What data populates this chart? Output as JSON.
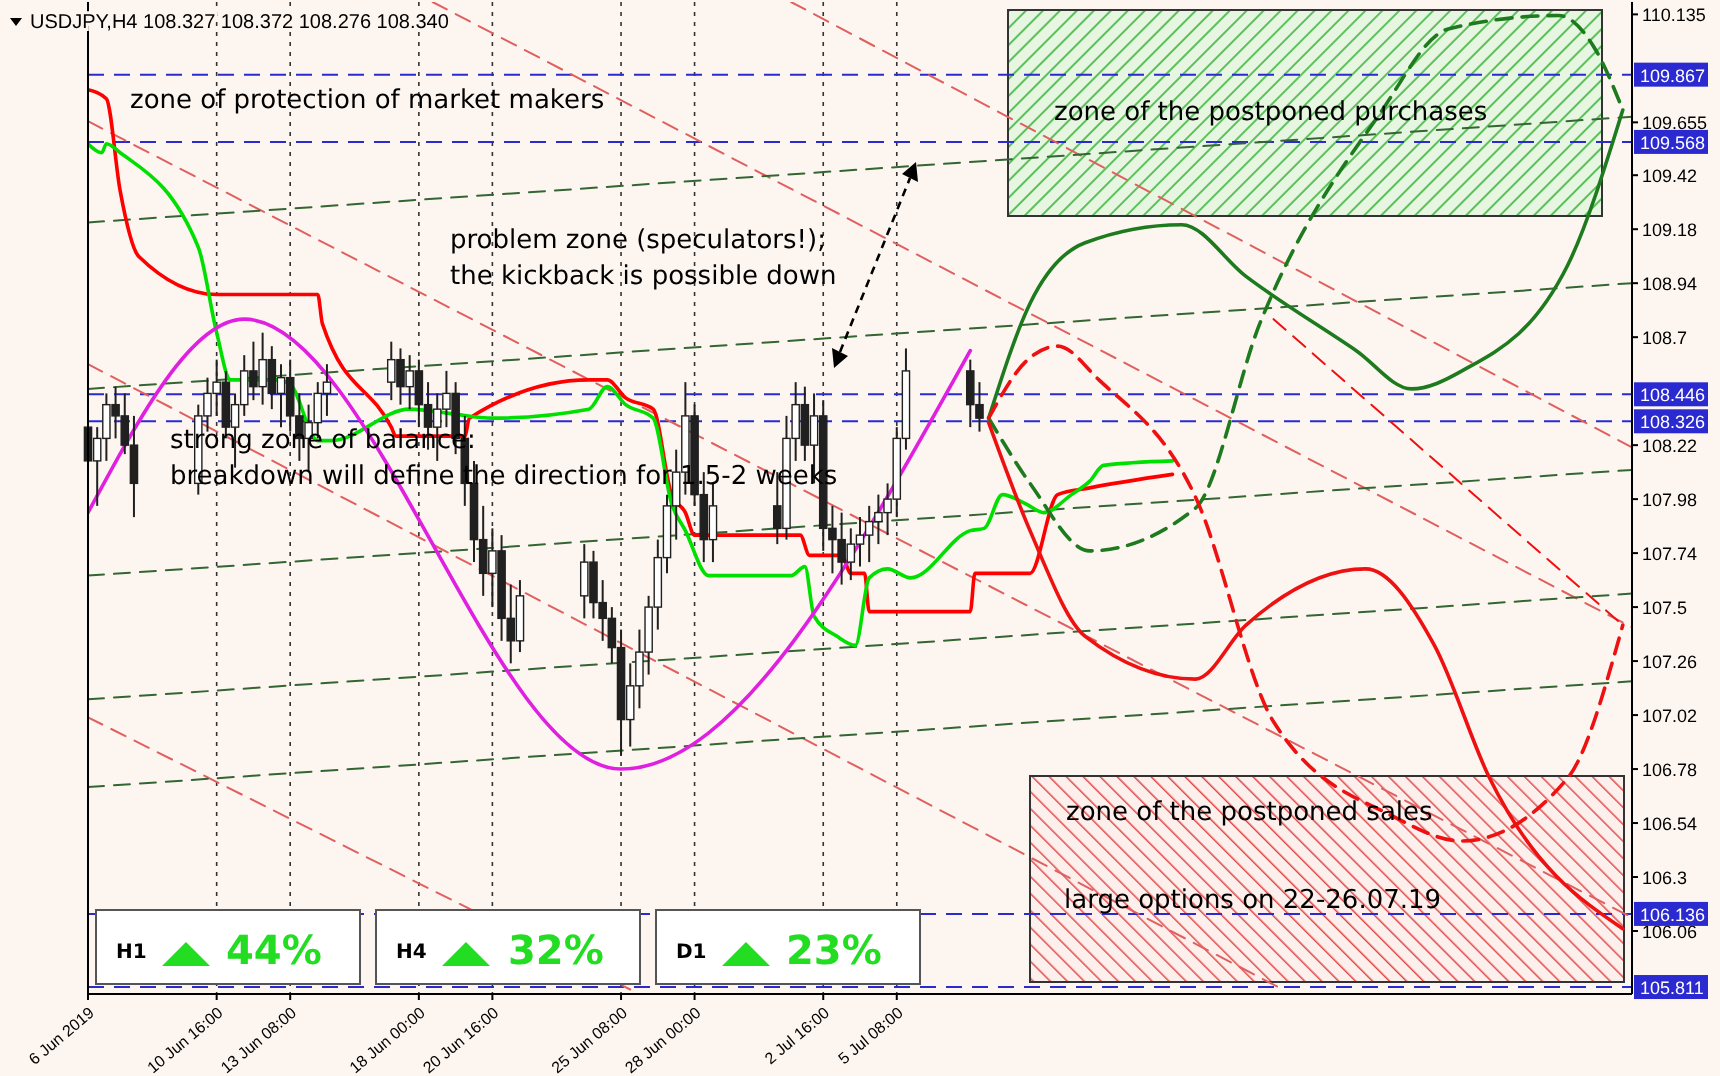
{
  "chart_data": {
    "type": "candlestick",
    "title": "USDJPY,H4 108.327 108.372 108.276 108.340",
    "x": [
      "2019-06-06T00:00",
      "2019-06-06T08:00",
      "2019-06-06T16:00",
      "2019-06-07T00:00",
      "2019-06-07T08:00",
      "2019-06-07T16:00",
      "2019-06-10T00:00",
      "2019-06-10T08:00",
      "2019-06-10T16:00",
      "2019-06-11T00:00",
      "2019-06-11T08:00",
      "2019-06-11T16:00",
      "2019-06-12T00:00",
      "2019-06-12T08:00",
      "2019-06-12T16:00",
      "2019-06-13T00:00",
      "2019-06-13T08:00",
      "2019-06-13T16:00",
      "2019-06-14T00:00",
      "2019-06-14T08:00",
      "2019-06-14T16:00",
      "2019-06-17T00:00",
      "2019-06-17T08:00",
      "2019-06-17T16:00",
      "2019-06-18T00:00",
      "2019-06-18T08:00",
      "2019-06-18T16:00",
      "2019-06-19T00:00",
      "2019-06-19T08:00",
      "2019-06-19T16:00",
      "2019-06-20T00:00",
      "2019-06-20T08:00",
      "2019-06-20T16:00",
      "2019-06-21T00:00",
      "2019-06-21T08:00",
      "2019-06-21T16:00",
      "2019-06-24T00:00",
      "2019-06-24T08:00",
      "2019-06-24T16:00",
      "2019-06-25T00:00",
      "2019-06-25T08:00",
      "2019-06-25T16:00",
      "2019-06-26T00:00",
      "2019-06-26T08:00",
      "2019-06-26T16:00",
      "2019-06-27T00:00",
      "2019-06-27T08:00",
      "2019-06-27T16:00",
      "2019-06-28T00:00",
      "2019-06-28T08:00",
      "2019-06-28T16:00",
      "2019-07-01T00:00",
      "2019-07-01T08:00",
      "2019-07-01T16:00",
      "2019-07-02T00:00",
      "2019-07-02T08:00",
      "2019-07-02T16:00",
      "2019-07-03T00:00",
      "2019-07-03T08:00",
      "2019-07-03T16:00",
      "2019-07-04T00:00",
      "2019-07-04T08:00",
      "2019-07-04T16:00",
      "2019-07-05T00:00",
      "2019-07-05T08:00",
      "2019-07-05T16:00",
      "2019-07-08T00:00",
      "2019-07-08T08:00"
    ],
    "ohlc": [
      [
        108.3,
        108.42,
        108.05,
        108.15
      ],
      [
        108.15,
        108.3,
        107.95,
        108.25
      ],
      [
        108.25,
        108.45,
        108.15,
        108.4
      ],
      [
        108.4,
        108.48,
        108.25,
        108.35
      ],
      [
        108.35,
        108.45,
        108.18,
        108.22
      ],
      [
        108.22,
        108.35,
        107.9,
        108.05
      ],
      [
        108.05,
        108.4,
        108.0,
        108.35
      ],
      [
        108.35,
        108.52,
        108.28,
        108.45
      ],
      [
        108.45,
        108.6,
        108.35,
        108.5
      ],
      [
        108.5,
        108.55,
        108.25,
        108.3
      ],
      [
        108.3,
        108.45,
        108.12,
        108.4
      ],
      [
        108.4,
        108.62,
        108.35,
        108.55
      ],
      [
        108.55,
        108.68,
        108.42,
        108.48
      ],
      [
        108.48,
        108.72,
        108.4,
        108.6
      ],
      [
        108.6,
        108.66,
        108.38,
        108.45
      ],
      [
        108.45,
        108.58,
        108.3,
        108.52
      ],
      [
        108.52,
        108.6,
        108.28,
        108.35
      ],
      [
        108.35,
        108.45,
        108.15,
        108.25
      ],
      [
        108.25,
        108.4,
        108.1,
        108.32
      ],
      [
        108.32,
        108.5,
        108.25,
        108.45
      ],
      [
        108.45,
        108.58,
        108.35,
        108.5
      ],
      [
        108.5,
        108.68,
        108.42,
        108.6
      ],
      [
        108.6,
        108.65,
        108.4,
        108.48
      ],
      [
        108.48,
        108.62,
        108.38,
        108.55
      ],
      [
        108.55,
        108.6,
        108.3,
        108.4
      ],
      [
        108.4,
        108.5,
        108.2,
        108.3
      ],
      [
        108.3,
        108.45,
        108.15,
        108.38
      ],
      [
        108.38,
        108.55,
        108.3,
        108.45
      ],
      [
        108.45,
        108.5,
        108.18,
        108.25
      ],
      [
        108.25,
        108.35,
        107.95,
        108.05
      ],
      [
        108.05,
        108.15,
        107.7,
        107.8
      ],
      [
        107.8,
        107.95,
        107.55,
        107.65
      ],
      [
        107.65,
        107.85,
        107.5,
        107.75
      ],
      [
        107.75,
        107.82,
        107.35,
        107.45
      ],
      [
        107.45,
        107.6,
        107.25,
        107.35
      ],
      [
        107.35,
        107.62,
        107.3,
        107.55
      ],
      [
        107.55,
        107.78,
        107.45,
        107.7
      ],
      [
        107.7,
        107.75,
        107.45,
        107.52
      ],
      [
        107.52,
        107.62,
        107.35,
        107.45
      ],
      [
        107.45,
        107.5,
        107.25,
        107.32
      ],
      [
        107.32,
        107.4,
        106.84,
        107.0
      ],
      [
        107.0,
        107.25,
        106.88,
        107.15
      ],
      [
        107.15,
        107.4,
        107.05,
        107.3
      ],
      [
        107.3,
        107.55,
        107.2,
        107.5
      ],
      [
        107.5,
        107.8,
        107.4,
        107.72
      ],
      [
        107.72,
        108.0,
        107.65,
        107.95
      ],
      [
        107.95,
        108.2,
        107.8,
        108.1
      ],
      [
        108.1,
        108.5,
        108.0,
        108.35
      ],
      [
        108.35,
        108.4,
        107.95,
        108.0
      ],
      [
        108.0,
        108.1,
        107.7,
        107.8
      ],
      [
        107.8,
        108.05,
        107.7,
        107.95
      ],
      [
        107.95,
        108.1,
        107.78,
        107.85
      ],
      [
        107.85,
        108.35,
        107.8,
        108.25
      ],
      [
        108.25,
        108.5,
        108.15,
        108.4
      ],
      [
        108.4,
        108.48,
        108.15,
        108.22
      ],
      [
        108.22,
        108.45,
        108.05,
        108.35
      ],
      [
        108.35,
        108.42,
        107.75,
        107.85
      ],
      [
        107.85,
        107.95,
        107.65,
        107.8
      ],
      [
        107.8,
        107.92,
        107.6,
        107.7
      ],
      [
        107.7,
        107.85,
        107.62,
        107.78
      ],
      [
        107.78,
        107.9,
        107.68,
        107.82
      ],
      [
        107.82,
        107.95,
        107.7,
        107.88
      ],
      [
        107.88,
        108.0,
        107.78,
        107.92
      ],
      [
        107.92,
        108.05,
        107.82,
        107.98
      ],
      [
        107.98,
        108.3,
        107.9,
        108.25
      ],
      [
        108.25,
        108.65,
        108.2,
        108.55
      ],
      [
        108.55,
        108.6,
        108.3,
        108.4
      ],
      [
        108.4,
        108.5,
        108.28,
        108.34
      ]
    ],
    "color": "#202020",
    "series": [
      {
        "type": "line",
        "color": "#e06060",
        "line_style": "dashed",
        "x": [
          "2019-07-01T12:00",
          "2019-08-01T00:00"
        ],
        "values": [
          110.19,
          108.21
        ]
      },
      {
        "type": "line",
        "color": "#e06060",
        "line_style": "dashed",
        "x": [
          "2019-06-18T12:00",
          "2019-08-01T00:00"
        ],
        "values": [
          110.19,
          107.41
        ]
      },
      {
        "type": "line",
        "color": "#e06060",
        "line_style": "dashed",
        "x": [
          "2019-06-06T00:00",
          "2019-08-01T00:00"
        ],
        "values": [
          109.66,
          106.12
        ]
      },
      {
        "type": "line",
        "color": "#e06060",
        "line_style": "dashed",
        "x": [
          "2019-06-06T00:00",
          "2019-07-19T08:00"
        ],
        "values": [
          108.58,
          105.8
        ]
      },
      {
        "type": "line",
        "color": "#e06060",
        "line_style": "dashed",
        "x": [
          "2019-06-06T00:00",
          "2019-06-25T16:00"
        ],
        "values": [
          107.01,
          105.8
        ]
      },
      {
        "type": "line",
        "color": "#336633",
        "line_style": "dashed",
        "x": [
          "2019-06-06T00:00",
          "2019-08-01T00:00"
        ],
        "values": [
          109.21,
          109.68
        ]
      },
      {
        "type": "line",
        "color": "#336633",
        "line_style": "dashed",
        "x": [
          "2019-06-06T00:00",
          "2019-08-01T00:00"
        ],
        "values": [
          108.47,
          108.94
        ]
      },
      {
        "type": "line",
        "color": "#336633",
        "line_style": "dashed",
        "x": [
          "2019-06-06T00:00",
          "2019-08-01T00:00"
        ],
        "values": [
          107.64,
          108.11
        ]
      },
      {
        "type": "line",
        "color": "#336633",
        "line_style": "dashed",
        "x": [
          "2019-06-06T00:00",
          "2019-08-01T00:00"
        ],
        "values": [
          107.09,
          107.56
        ]
      },
      {
        "type": "line",
        "color": "#336633",
        "line_style": "dashed",
        "x": [
          "2019-06-06T00:00",
          "2019-08-01T00:00"
        ],
        "values": [
          106.7,
          107.17
        ]
      },
      {
        "type": "line",
        "color": "#ff0000",
        "line_style": "solid",
        "x": [
          "2019-06-06T00:00",
          "2019-06-06T16:00",
          "2019-06-07T04:00",
          "2019-06-07T20:00",
          "2019-06-10T16:00",
          "2019-06-14T08:00",
          "2019-06-14T12:00",
          "2019-06-17T00:00",
          "2019-06-17T04:00",
          "2019-06-19T16:00",
          "2019-06-19T20:00",
          "2019-06-24T04:00",
          "2019-06-24T20:00",
          "2019-06-25T12:00",
          "2019-06-26T12:00",
          "2019-06-27T04:00",
          "2019-06-27T16:00",
          "2019-06-28T00:00",
          "2019-07-01T20:00",
          "2019-07-02T04:00",
          "2019-07-03T08:00",
          "2019-07-03T16:00",
          "2019-07-04T04:00",
          "2019-07-04T08:00",
          "2019-07-08T00:00",
          "2019-07-08T04:00",
          "2019-07-10T04:00",
          "2019-07-11T04:00",
          "2019-07-12T08:00",
          "2019-07-15T08:00"
        ],
        "values": [
          109.8,
          109.76,
          109.35,
          109.06,
          108.89,
          108.89,
          108.76,
          108.3,
          108.26,
          108.26,
          108.34,
          108.51,
          108.51,
          108.43,
          108.38,
          108.0,
          107.92,
          107.82,
          107.82,
          107.73,
          107.73,
          107.65,
          107.65,
          107.48,
          107.48,
          107.65,
          107.65,
          108.0,
          108.03,
          108.09
        ]
      },
      {
        "type": "line",
        "color": "#00e000",
        "line_style": "solid",
        "x": [
          "2019-06-06T00:00",
          "2019-06-06T12:00",
          "2019-06-06T16:00",
          "2019-06-07T04:00",
          "2019-06-10T00:00",
          "2019-06-10T16:00",
          "2019-06-11T04:00",
          "2019-06-12T20:00",
          "2019-06-13T08:00",
          "2019-06-14T08:00",
          "2019-06-14T20:00",
          "2019-06-17T16:00",
          "2019-06-19T04:00",
          "2019-06-20T16:00",
          "2019-06-24T04:00",
          "2019-06-24T20:00",
          "2019-06-25T12:00",
          "2019-06-26T12:00",
          "2019-06-27T04:00",
          "2019-06-27T16:00",
          "2019-06-28T12:00",
          "2019-07-01T12:00",
          "2019-07-02T00:00",
          "2019-07-02T08:00",
          "2019-07-03T04:00",
          "2019-07-03T20:00",
          "2019-07-04T08:00",
          "2019-07-05T00:00",
          "2019-07-05T20:00",
          "2019-07-08T00:00",
          "2019-07-08T12:00",
          "2019-07-09T04:00",
          "2019-07-10T00:00",
          "2019-07-10T16:00",
          "2019-07-11T16:00",
          "2019-07-12T08:00",
          "2019-07-12T20:00",
          "2019-07-15T08:00"
        ],
        "values": [
          109.56,
          109.52,
          109.56,
          109.52,
          109.1,
          108.72,
          108.51,
          108.51,
          108.49,
          108.24,
          108.24,
          108.38,
          108.36,
          108.34,
          108.38,
          108.48,
          108.4,
          108.34,
          107.96,
          107.84,
          107.64,
          107.64,
          107.68,
          107.46,
          107.37,
          107.33,
          107.63,
          107.67,
          107.63,
          107.84,
          107.85,
          108.0,
          107.96,
          107.92,
          108.0,
          108.06,
          108.13,
          108.15
        ]
      },
      {
        "type": "line",
        "color": "#e020e0",
        "line_style": "solid",
        "x": [
          "2019-06-06T00:00",
          "2019-06-11T16:00",
          "2019-06-25T08:00",
          "2019-07-08T00:00"
        ],
        "values": [
          107.92,
          108.78,
          106.78,
          108.64
        ]
      },
      {
        "type": "line",
        "color": "#1e7a1e",
        "line_style": "solid",
        "x": [
          "2019-07-08T16:00",
          "2019-07-10T04:00",
          "2019-07-12T04:00",
          "2019-07-15T16:00",
          "2019-07-18T00:00",
          "2019-07-22T00:00",
          "2019-07-24T00:00",
          "2019-07-25T20:00",
          "2019-07-29T16:00",
          "2019-07-31T16:00"
        ],
        "values": [
          108.34,
          108.85,
          109.12,
          109.2,
          108.97,
          108.64,
          108.47,
          108.55,
          109.02,
          109.71
        ]
      },
      {
        "type": "line",
        "color": "#1e7a1e",
        "line_style": "dashed",
        "x": [
          "2019-07-08T16:00",
          "2019-07-10T04:00",
          "2019-07-12T08:00",
          "2019-07-16T04:00",
          "2019-07-18T12:00",
          "2019-07-22T20:00",
          "2019-07-25T08:00",
          "2019-07-29T08:00",
          "2019-07-30T16:00",
          "2019-07-31T16:00"
        ],
        "values": [
          108.34,
          108.05,
          107.75,
          107.94,
          108.76,
          109.69,
          110.07,
          110.13,
          109.98,
          109.71
        ]
      },
      {
        "type": "line",
        "color": "#ee1111",
        "line_style": "dashed",
        "x": [
          "2019-07-08T16:00",
          "2019-07-10T00:00",
          "2019-07-11T04:00",
          "2019-07-12T16:00",
          "2019-07-16T04:00",
          "2019-07-19T00:00",
          "2019-07-23T08:00",
          "2019-07-25T20:00",
          "2019-07-29T16:00",
          "2019-07-31T16:00"
        ],
        "values": [
          108.34,
          108.59,
          108.66,
          108.51,
          107.99,
          106.99,
          106.57,
          106.46,
          106.74,
          107.42
        ]
      },
      {
        "type": "line",
        "color": "#ee1111",
        "line_style": "solid",
        "x": [
          "2019-07-08T16:00",
          "2019-07-10T04:00",
          "2019-07-12T04:00",
          "2019-07-16T04:00",
          "2019-07-18T00:00",
          "2019-07-22T08:00",
          "2019-07-24T20:00",
          "2019-07-26T20:00",
          "2019-07-31T16:00"
        ],
        "values": [
          108.32,
          107.84,
          107.37,
          107.18,
          107.42,
          107.67,
          107.33,
          106.74,
          106.07
        ]
      },
      {
        "type": "line",
        "color": "#ee1111",
        "line_style": "dashed",
        "x": [
          "2019-07-19T00:00",
          "2019-07-31T16:00"
        ],
        "values": [
          108.78,
          107.42
        ]
      }
    ],
    "xlim": [
      "2019-06-06T00:00",
      "2019-08-01T00:00"
    ],
    "xticks": [
      {
        "value": "2019-06-06T00:00",
        "label": "6 Jun 2019"
      },
      {
        "value": "2019-06-10T16:00",
        "label": "10 Jun 16:00"
      },
      {
        "value": "2019-06-13T08:00",
        "label": "13 Jun 08:00"
      },
      {
        "value": "2019-06-18T00:00",
        "label": "18 Jun 00:00"
      },
      {
        "value": "2019-06-20T16:00",
        "label": "20 Jun 16:00"
      },
      {
        "value": "2019-06-25T08:00",
        "label": "25 Jun 08:00"
      },
      {
        "value": "2019-06-28T00:00",
        "label": "28 Jun 00:00"
      },
      {
        "value": "2019-07-02T16:00",
        "label": "2 Jul 16:00"
      },
      {
        "value": "2019-07-05T08:00",
        "label": "5 Jul 08:00"
      }
    ],
    "ylim": [
      105.78,
      110.19
    ],
    "yticks": [
      110.135,
      109.655,
      109.42,
      109.18,
      108.94,
      108.7,
      108.22,
      107.98,
      107.74,
      107.5,
      107.26,
      107.02,
      106.78,
      106.54,
      106.3,
      106.06
    ],
    "ref_lines": [
      {
        "axis": "y",
        "value": 109.867,
        "label": "109.867",
        "color": "#2a2ad0",
        "line_style": "dashed"
      },
      {
        "axis": "y",
        "value": 109.568,
        "label": "109.568",
        "color": "#2a2ad0",
        "line_style": "dashed"
      },
      {
        "axis": "y",
        "value": 108.446,
        "label": "108.446",
        "color": "#2a2ad0",
        "line_style": "dashed"
      },
      {
        "axis": "y",
        "value": 108.326,
        "label": "108.326",
        "color": "#2a2ad0",
        "line_style": "dashed"
      },
      {
        "axis": "y",
        "value": 106.136,
        "label": "106.136",
        "color": "#2a2ad0",
        "line_style": "dashed"
      },
      {
        "axis": "y",
        "value": 105.811,
        "label": "105.811",
        "color": "#2a2ad0",
        "line_style": "dashed"
      }
    ],
    "grid": "x",
    "annotations": [
      "zone of protection of market makers",
      "problem zone (speculators!);",
      "the kickback is possible down",
      "strong zone of balance:",
      "breakdown will define the direction for 1.5-2 weeks",
      "zone of the postponed purchases",
      "zone of the postponed sales",
      "large options on 22-26.07.19",
      "H1",
      "44%",
      "H4",
      "32%",
      "D1",
      "23%"
    ]
  }
}
